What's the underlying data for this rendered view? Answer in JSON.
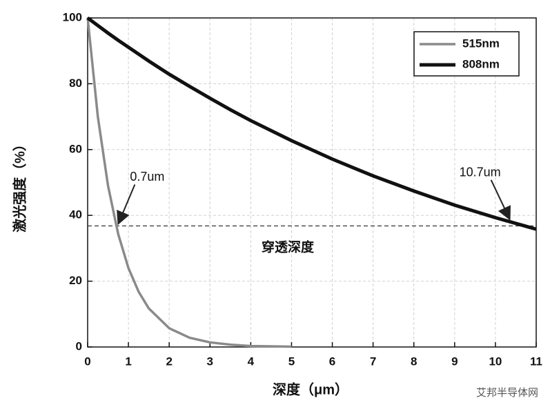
{
  "chart_data": {
    "type": "line",
    "x_label": "深度（μm）",
    "y_label": "激光强度（%）",
    "x": [
      0,
      0.25,
      0.5,
      0.75,
      1,
      1.25,
      1.5,
      2,
      2.5,
      3,
      3.5,
      4,
      5,
      6,
      7,
      8,
      9,
      10,
      11
    ],
    "series": [
      {
        "name": "515nm",
        "color": "#8a8a8a",
        "values": [
          100,
          70.0,
          49.0,
          34.3,
          24.0,
          16.8,
          11.7,
          5.7,
          2.8,
          1.4,
          0.7,
          0.3,
          0.1,
          null,
          null,
          null,
          null,
          null,
          null
        ]
      },
      {
        "name": "808nm",
        "color": "#111111",
        "values": [
          100,
          97.7,
          95.4,
          93.2,
          91.1,
          89.0,
          86.9,
          82.9,
          79.2,
          75.6,
          72.1,
          68.8,
          62.7,
          57.1,
          52.0,
          47.4,
          43.1,
          39.3,
          35.8
        ]
      }
    ],
    "reference_line": {
      "value": 36.8,
      "label": "穿透深度"
    },
    "annotations": [
      {
        "text": "0.7um",
        "x": 0.7,
        "y": 36.8
      },
      {
        "text": "10.7um",
        "x": 10.3,
        "y": 38.2
      }
    ],
    "xlim": [
      0,
      11
    ],
    "xticks": [
      0,
      1,
      2,
      3,
      4,
      5,
      6,
      7,
      8,
      9,
      10,
      11
    ],
    "ylim": [
      0,
      100
    ],
    "yticks": [
      0,
      20,
      40,
      60,
      80,
      100
    ],
    "grid": true,
    "legend": "upper right",
    "watermark": "艾邦半导体网"
  }
}
